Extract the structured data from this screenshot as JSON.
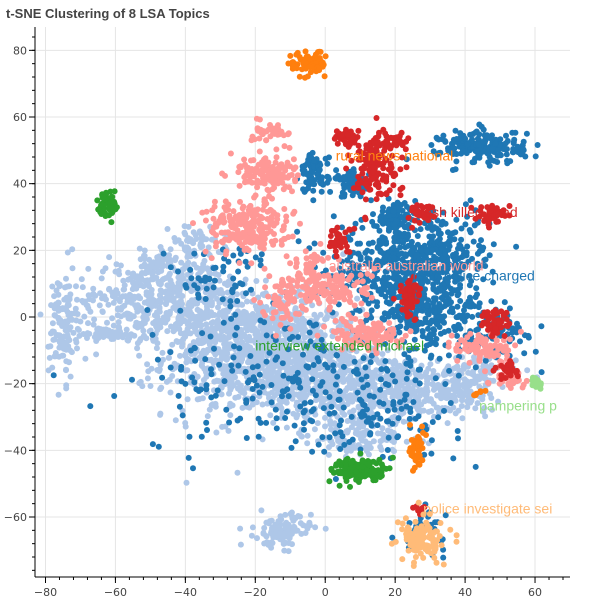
{
  "chart_data": {
    "type": "scatter",
    "title": "t-SNE Clustering of 8 LSA Topics",
    "xlabel": "",
    "ylabel": "",
    "xlim": [
      -83,
      70
    ],
    "ylim": [
      -78,
      87
    ],
    "x_ticks": [
      -80,
      -60,
      -40,
      -20,
      0,
      20,
      40,
      60
    ],
    "y_ticks": [
      -60,
      -40,
      -20,
      0,
      20,
      40,
      60,
      80
    ],
    "grid": true,
    "legend": "none",
    "colors": {
      "light_blue": "#aec7e8",
      "dark_blue": "#1f77b4",
      "pink": "#ff9896",
      "red": "#d62728",
      "orange": "#ff7f0e",
      "green": "#2ca02c",
      "light_green": "#98df8a",
      "peach": "#ffbb78"
    },
    "topic_labels": [
      {
        "text": "rural news national",
        "x": 3,
        "y": 47,
        "color": "#ff7f0e"
      },
      {
        "text": "crash killed dead",
        "x": 25,
        "y": 30,
        "color": "#d62728"
      },
      {
        "text": "australia australian world",
        "x": 1,
        "y": 14,
        "color": "#ff9896"
      },
      {
        "text": "man police charged",
        "x": 25,
        "y": 11,
        "color": "#1f77b4"
      },
      {
        "text": "interview extended michael",
        "x": -20,
        "y": -10,
        "color": "#2ca02c"
      },
      {
        "text": "pampering p",
        "x": 44,
        "y": -28,
        "color": "#98df8a"
      },
      {
        "text": "police investigate sei",
        "x": 28,
        "y": -59,
        "color": "#ffbb78"
      }
    ],
    "series": [
      {
        "name": "light-blue cluster",
        "color": "#aec7e8",
        "clusters": [
          {
            "x": -18,
            "y": -12,
            "sx": 14,
            "sy": 9,
            "n": 900
          },
          {
            "x": -40,
            "y": 8,
            "sx": 10,
            "sy": 5,
            "n": 200
          },
          {
            "x": -55,
            "y": 5,
            "sx": 8,
            "sy": 5,
            "n": 150
          },
          {
            "x": -30,
            "y": -2,
            "sx": 12,
            "sy": 5,
            "n": 300
          },
          {
            "x": 5,
            "y": -20,
            "sx": 10,
            "sy": 6,
            "n": 350
          },
          {
            "x": 25,
            "y": -22,
            "sx": 8,
            "sy": 5,
            "n": 200
          },
          {
            "x": 40,
            "y": -22,
            "sx": 5,
            "sy": 3,
            "n": 90
          },
          {
            "x": 45,
            "y": -16,
            "sx": 6,
            "sy": 2.5,
            "n": 60
          },
          {
            "x": -75,
            "y": -3,
            "sx": 2,
            "sy": 8,
            "n": 120
          },
          {
            "x": -62,
            "y": -5,
            "sx": 5,
            "sy": 1.2,
            "n": 60
          },
          {
            "x": -12,
            "y": -64,
            "sx": 4,
            "sy": 2.5,
            "n": 110
          },
          {
            "x": -37,
            "y": 22,
            "sx": 4,
            "sy": 2.5,
            "n": 60
          },
          {
            "x": -48,
            "y": 16,
            "sx": 5,
            "sy": 2.5,
            "n": 50
          },
          {
            "x": 10,
            "y": -35,
            "sx": 8,
            "sy": 4,
            "n": 120
          }
        ]
      },
      {
        "name": "dark-blue cluster",
        "color": "#1f77b4",
        "clusters": [
          {
            "x": 22,
            "y": 14,
            "sx": 10,
            "sy": 7,
            "n": 500
          },
          {
            "x": 30,
            "y": 0,
            "sx": 8,
            "sy": 5,
            "n": 200
          },
          {
            "x": 45,
            "y": 51,
            "sx": 6,
            "sy": 2.5,
            "n": 200
          },
          {
            "x": -3,
            "y": 43,
            "sx": 2,
            "sy": 3,
            "n": 80
          },
          {
            "x": 8,
            "y": 40,
            "sx": 2.5,
            "sy": 2,
            "n": 60
          },
          {
            "x": 20,
            "y": 30,
            "sx": 3,
            "sy": 2,
            "n": 60
          },
          {
            "x": 50,
            "y": -5,
            "sx": 4,
            "sy": 4,
            "n": 60
          },
          {
            "x": -10,
            "y": -20,
            "sx": 22,
            "sy": 10,
            "n": 220
          },
          {
            "x": -30,
            "y": 12,
            "sx": 8,
            "sy": 5,
            "n": 60
          },
          {
            "x": 15,
            "y": -30,
            "sx": 12,
            "sy": 6,
            "n": 80
          },
          {
            "x": 36,
            "y": 20,
            "sx": 8,
            "sy": 6,
            "n": 120
          },
          {
            "x": 28,
            "y": -64,
            "sx": 3,
            "sy": 3,
            "n": 40
          }
        ]
      },
      {
        "name": "pink cluster",
        "color": "#ff9896",
        "clusters": [
          {
            "x": -22,
            "y": 27,
            "sx": 6,
            "sy": 4,
            "n": 220
          },
          {
            "x": -17,
            "y": 43,
            "sx": 4,
            "sy": 3,
            "n": 130
          },
          {
            "x": -15,
            "y": 56,
            "sx": 2.5,
            "sy": 1.5,
            "n": 40
          },
          {
            "x": 2,
            "y": 8,
            "sx": 6,
            "sy": 3,
            "n": 130
          },
          {
            "x": 12,
            "y": -5,
            "sx": 5,
            "sy": 2.5,
            "n": 110
          },
          {
            "x": 45,
            "y": -9,
            "sx": 4,
            "sy": 2.5,
            "n": 90
          },
          {
            "x": -12,
            "y": 5,
            "sx": 3,
            "sy": 3,
            "n": 60
          },
          {
            "x": -5,
            "y": 15,
            "sx": 3,
            "sy": 3,
            "n": 50
          },
          {
            "x": 52,
            "y": -18,
            "sx": 3,
            "sy": 1.5,
            "n": 30
          }
        ]
      },
      {
        "name": "red cluster",
        "color": "#d62728",
        "clusters": [
          {
            "x": 14,
            "y": 45,
            "sx": 3.5,
            "sy": 5,
            "n": 140
          },
          {
            "x": 6,
            "y": 54,
            "sx": 2,
            "sy": 1.5,
            "n": 40
          },
          {
            "x": 20,
            "y": 53,
            "sx": 2,
            "sy": 1.5,
            "n": 30
          },
          {
            "x": 27,
            "y": 31,
            "sx": 2,
            "sy": 1.5,
            "n": 30
          },
          {
            "x": 48,
            "y": 31,
            "sx": 2.5,
            "sy": 1.5,
            "n": 40
          },
          {
            "x": 4,
            "y": 23,
            "sx": 2,
            "sy": 2,
            "n": 40
          },
          {
            "x": 24,
            "y": 6,
            "sx": 1.5,
            "sy": 3,
            "n": 60
          },
          {
            "x": 49,
            "y": -2,
            "sx": 2,
            "sy": 2,
            "n": 60
          },
          {
            "x": 52,
            "y": -16,
            "sx": 2,
            "sy": 1.5,
            "n": 25
          },
          {
            "x": 27,
            "y": -58,
            "sx": 1,
            "sy": 1,
            "n": 10
          }
        ]
      },
      {
        "name": "orange cluster",
        "color": "#ff7f0e",
        "clusters": [
          {
            "x": -5,
            "y": 76,
            "sx": 2.5,
            "sy": 2,
            "n": 70
          },
          {
            "x": 26,
            "y": -40,
            "sx": 1.2,
            "sy": 3,
            "n": 40
          },
          {
            "x": 44,
            "y": -23,
            "sx": 1,
            "sy": 0.5,
            "n": 6
          }
        ]
      },
      {
        "name": "green cluster",
        "color": "#2ca02c",
        "clusters": [
          {
            "x": -62,
            "y": 34,
            "sx": 1.5,
            "sy": 2.5,
            "n": 50
          },
          {
            "x": 10,
            "y": -46,
            "sx": 4,
            "sy": 1.8,
            "n": 150
          }
        ]
      },
      {
        "name": "light-green cluster",
        "color": "#98df8a",
        "clusters": [
          {
            "x": 60,
            "y": -20,
            "sx": 1.2,
            "sy": 1,
            "n": 15
          }
        ]
      },
      {
        "name": "peach cluster",
        "color": "#ffbb78",
        "clusters": [
          {
            "x": 28,
            "y": -67,
            "sx": 3,
            "sy": 3,
            "n": 120
          }
        ]
      }
    ]
  }
}
